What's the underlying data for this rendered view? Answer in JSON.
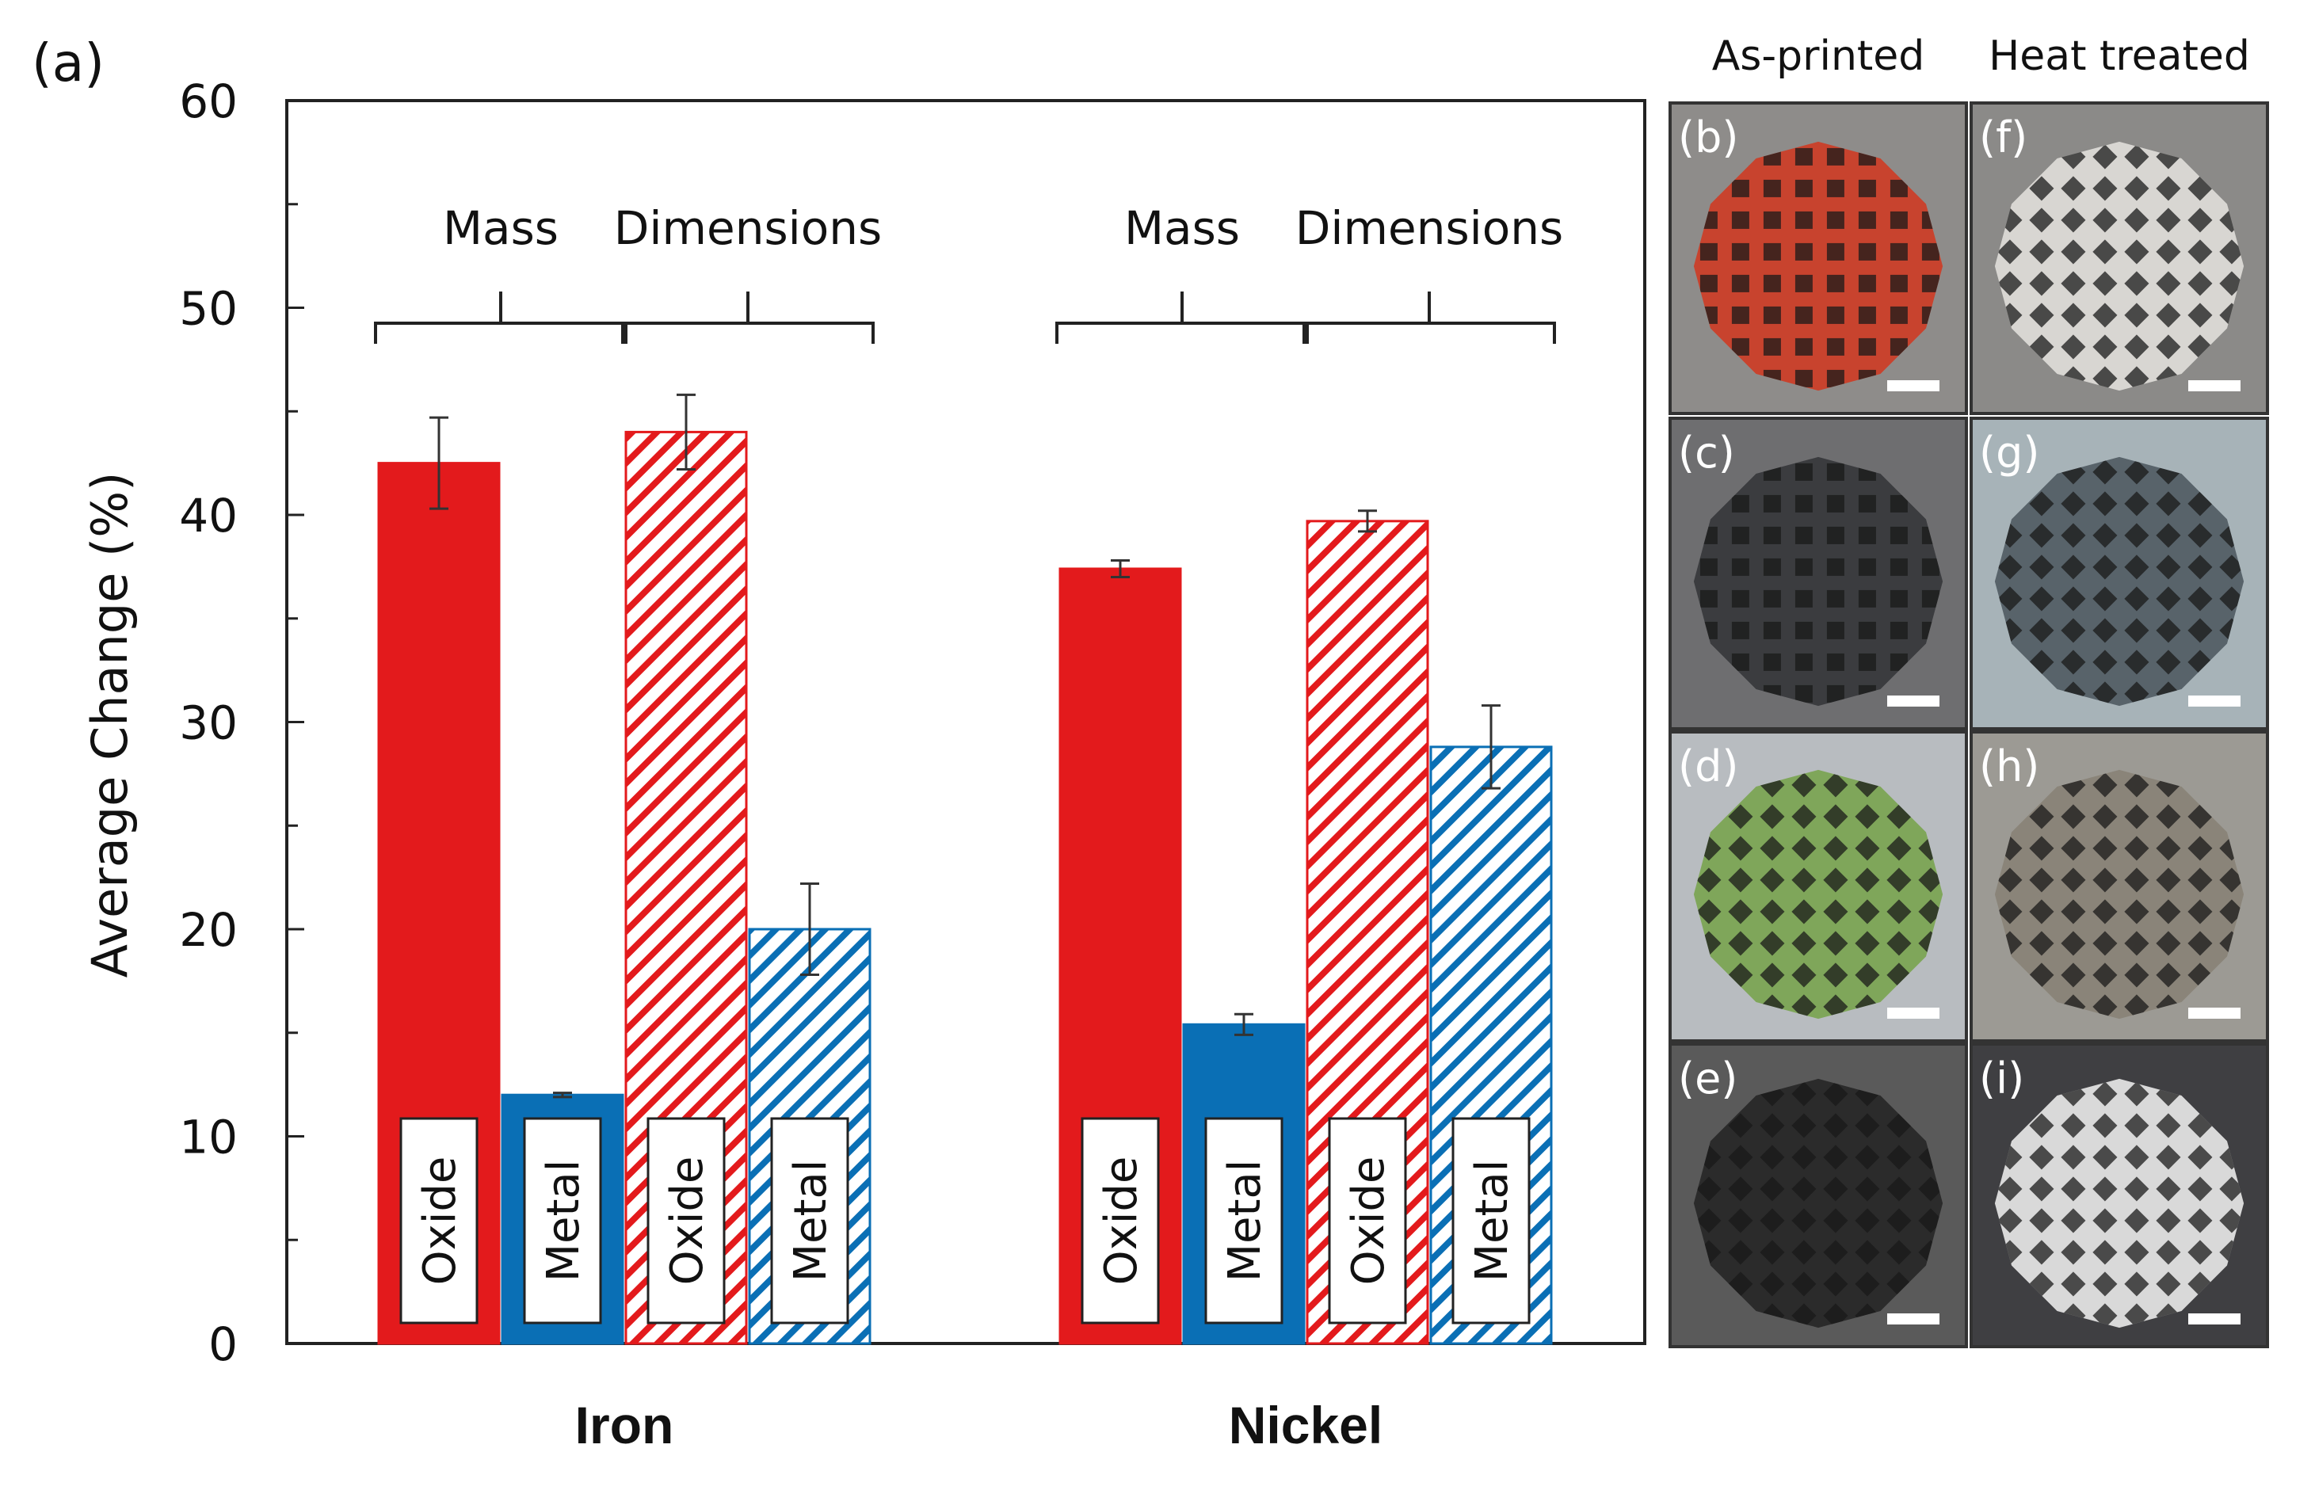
{
  "chart_data": {
    "type": "bar",
    "panel_label": "(a)",
    "ylabel": "Average Change (%)",
    "ylim": [
      0,
      60
    ],
    "yticks": [
      0,
      10,
      20,
      30,
      40,
      50,
      60
    ],
    "groups": [
      {
        "name": "Iron",
        "brackets": [
          "Mass",
          "Dimensions"
        ],
        "bars": [
          {
            "label": "Oxide",
            "measure": "Mass",
            "material": "oxide",
            "pattern": "solid",
            "value": 42.5,
            "error": 2.2
          },
          {
            "label": "Metal",
            "measure": "Mass",
            "material": "metal",
            "pattern": "solid",
            "value": 12.0,
            "error": 0.1
          },
          {
            "label": "Oxide",
            "measure": "Dimensions",
            "material": "oxide",
            "pattern": "hatched",
            "value": 44.0,
            "error": 1.8
          },
          {
            "label": "Metal",
            "measure": "Dimensions",
            "material": "metal",
            "pattern": "hatched",
            "value": 20.0,
            "error": 2.2
          }
        ]
      },
      {
        "name": "Nickel",
        "brackets": [
          "Mass",
          "Dimensions"
        ],
        "bars": [
          {
            "label": "Oxide",
            "measure": "Mass",
            "material": "oxide",
            "pattern": "solid",
            "value": 37.4,
            "error": 0.4
          },
          {
            "label": "Metal",
            "measure": "Mass",
            "material": "metal",
            "pattern": "solid",
            "value": 15.4,
            "error": 0.5
          },
          {
            "label": "Oxide",
            "measure": "Dimensions",
            "material": "oxide",
            "pattern": "hatched",
            "value": 39.7,
            "error": 0.5
          },
          {
            "label": "Metal",
            "measure": "Dimensions",
            "material": "metal",
            "pattern": "hatched",
            "value": 28.8,
            "error": 2.0
          }
        ]
      }
    ],
    "colors": {
      "oxide": "#e31a1c",
      "metal": "#0a6fb5",
      "axis": "#222222"
    }
  },
  "photo_panel": {
    "column_headers": [
      "As-printed",
      "Heat treated"
    ],
    "rows": [
      [
        {
          "label": "(b)",
          "icon": "red-oxide-lattice-photo",
          "bg": "#8e8c8a",
          "lattice": "#c8432e"
        },
        {
          "label": "(f)",
          "icon": "silver-metal-lattice-photo",
          "bg": "#8b8a88",
          "lattice": "#d8d6d2"
        }
      ],
      [
        {
          "label": "(c)",
          "icon": "dark-oxide-lattice-photo",
          "bg": "#6e6e70",
          "lattice": "#3b3c3f"
        },
        {
          "label": "(g)",
          "icon": "grey-metal-lattice-photo",
          "bg": "#a7b3b8",
          "lattice": "#58636a"
        }
      ],
      [
        {
          "label": "(d)",
          "icon": "green-oxide-lattice-photo",
          "bg": "#b8bcc0",
          "lattice": "#7fa65a"
        },
        {
          "label": "(h)",
          "icon": "beige-metal-lattice-photo",
          "bg": "#9c9a94",
          "lattice": "#8a8479"
        }
      ],
      [
        {
          "label": "(e)",
          "icon": "black-oxide-lattice-photo",
          "bg": "#5a5a5a",
          "lattice": "#2b2b2b"
        },
        {
          "label": "(i)",
          "icon": "white-metal-lattice-photo",
          "bg": "#3f3f42",
          "lattice": "#d9d9d9"
        }
      ]
    ]
  }
}
